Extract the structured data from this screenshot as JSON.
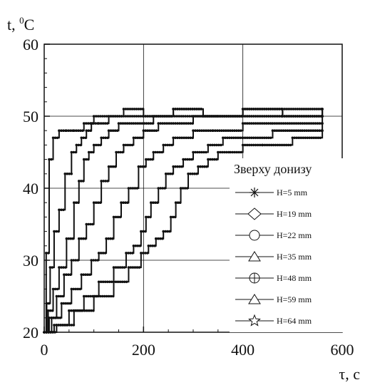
{
  "chart_data": {
    "type": "line",
    "title": "",
    "xlabel": "τ, c",
    "ylabel_prefix": "t, ",
    "ylabel_sup": "0",
    "ylabel_unit": "C",
    "xlim": [
      0,
      600
    ],
    "ylim": [
      20,
      60
    ],
    "xticks": [
      "0",
      "200",
      "400",
      "600"
    ],
    "yticks": [
      "20",
      "30",
      "40",
      "50",
      "60"
    ],
    "grid": true,
    "legend_title": "Зверху донизу",
    "legend_placement": "right",
    "series": [
      {
        "name": "H=5 mm",
        "marker": "asterisk",
        "x": [
          0,
          4,
          10,
          18,
          30,
          45,
          60,
          80,
          100,
          130,
          160,
          200,
          260,
          320,
          400,
          480,
          560
        ],
        "y": [
          20,
          31,
          44,
          47,
          48,
          48,
          48,
          49,
          50,
          50,
          51,
          50,
          51,
          50,
          51,
          50,
          51
        ]
      },
      {
        "name": "H=19 mm",
        "marker": "diamond",
        "x": [
          0,
          5,
          12,
          20,
          30,
          42,
          55,
          65,
          75,
          85,
          95,
          110,
          130,
          160,
          200,
          260,
          320,
          400,
          480,
          560
        ],
        "y": [
          20,
          24,
          29,
          34,
          37,
          42,
          45,
          46,
          47,
          48,
          49,
          49,
          50,
          50,
          50,
          51,
          50,
          51,
          50,
          51
        ]
      },
      {
        "name": "H=22 mm",
        "marker": "circle",
        "x": [
          0,
          8,
          18,
          30,
          45,
          60,
          70,
          80,
          90,
          100,
          115,
          130,
          150,
          180,
          220,
          280,
          340,
          400,
          480,
          560
        ],
        "y": [
          20,
          23,
          26,
          29,
          33,
          38,
          41,
          44,
          45,
          46,
          47,
          48,
          49,
          49,
          50,
          50,
          50,
          50,
          51,
          50
        ]
      },
      {
        "name": "H=35 mm",
        "marker": "triangle",
        "x": [
          0,
          10,
          25,
          40,
          55,
          70,
          85,
          100,
          115,
          130,
          145,
          160,
          180,
          200,
          230,
          260,
          300,
          350,
          400,
          480,
          560
        ],
        "y": [
          20,
          22,
          25,
          28,
          30,
          33,
          35,
          38,
          41,
          43,
          45,
          46,
          47,
          48,
          49,
          49,
          50,
          50,
          50,
          50,
          50
        ]
      },
      {
        "name": "H=48 mm",
        "marker": "circle-plus",
        "x": [
          0,
          15,
          35,
          55,
          75,
          95,
          110,
          125,
          140,
          155,
          170,
          190,
          205,
          220,
          240,
          260,
          300,
          340,
          400,
          460,
          560
        ],
        "y": [
          20,
          22,
          24,
          26,
          28,
          30,
          31,
          33,
          36,
          38,
          40,
          43,
          44,
          45,
          46,
          47,
          48,
          48,
          49,
          49,
          50
        ]
      },
      {
        "name": "H=59 mm",
        "marker": "triangle",
        "x": [
          0,
          20,
          50,
          80,
          110,
          140,
          165,
          180,
          195,
          205,
          215,
          230,
          245,
          260,
          280,
          300,
          330,
          360,
          400,
          460,
          520,
          560
        ],
        "y": [
          20,
          21,
          23,
          25,
          27,
          29,
          31,
          32,
          34,
          36,
          38,
          40,
          42,
          43,
          44,
          45,
          46,
          47,
          47,
          48,
          48,
          49
        ]
      },
      {
        "name": "H=64 mm",
        "marker": "star",
        "x": [
          0,
          25,
          60,
          100,
          140,
          170,
          195,
          210,
          225,
          240,
          255,
          265,
          275,
          290,
          310,
          330,
          350,
          375,
          400,
          440,
          500,
          560
        ],
        "y": [
          20,
          21,
          23,
          25,
          27,
          29,
          31,
          32,
          33,
          34,
          36,
          38,
          40,
          42,
          43,
          44,
          45,
          45,
          46,
          46,
          47,
          48
        ]
      }
    ]
  }
}
